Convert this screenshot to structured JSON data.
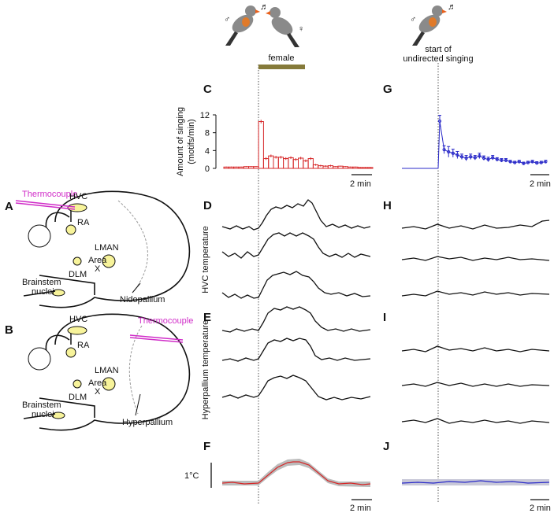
{
  "panels": [
    "A",
    "B",
    "C",
    "D",
    "E",
    "F",
    "G",
    "H",
    "I",
    "J"
  ],
  "male_symbol": "♂",
  "female_symbol": "♀",
  "note_symbol": "♬",
  "female_label": "female",
  "undirected_label": [
    "start of",
    "undirected singing"
  ],
  "y_axis_label": [
    "Amount of singing",
    "(motifs/min)"
  ],
  "scale_bar": "2 min",
  "hvc_temperature": "HVC temperature",
  "hyperpallium_temperature": "Hyperpallium temperature",
  "temperature_scale": "1°C",
  "brain_a": {
    "thermocouple": "Thermocouple",
    "hvc": "HVC",
    "ra": "RA",
    "lman": "LMAN",
    "area_x": [
      "Area",
      "X"
    ],
    "dlm": "DLM",
    "brainstem": [
      "Brainstem",
      "nuclei"
    ],
    "region": "Nidopallium"
  },
  "brain_b": {
    "thermocouple": "Thermocouple",
    "hvc": "HVC",
    "ra": "RA",
    "lman": "LMAN",
    "area_x": [
      "Area",
      "X"
    ],
    "dlm": "DLM",
    "brainstem": [
      "Brainstem",
      "nuclei"
    ],
    "region": "Hyperpallium"
  },
  "chart_data": [
    {
      "type": "step",
      "color": "#d62728",
      "ylim": [
        0,
        12
      ],
      "yticks": [
        0,
        4,
        8,
        12
      ],
      "values": [
        0.3,
        0.3,
        0.3,
        0.3,
        0.4,
        0.4,
        0.4,
        10.5,
        2.2,
        2.8,
        2.5,
        2.5,
        2.2,
        2.4,
        2.0,
        2.3,
        1.7,
        2.2,
        0.8,
        0.6,
        0.5,
        0.6,
        0.4,
        0.5,
        0.4,
        0.3,
        0.3,
        0.2,
        0.2,
        0.2
      ],
      "errors": [
        0.1,
        0.1,
        0.1,
        0.1,
        0.1,
        0.1,
        0.1,
        0.4,
        0.3,
        0.3,
        0.3,
        0.3,
        0.3,
        0.3,
        0.3,
        0.3,
        0.3,
        0.3,
        0.2,
        0.2,
        0.2,
        0.2,
        0.1,
        0.1,
        0.1,
        0.1,
        0.1,
        0.1,
        0.1,
        0.1
      ]
    },
    {
      "type": "line",
      "color": "#2929c8",
      "ylim": [
        0,
        12
      ],
      "values": [
        10.6,
        4.2,
        3.7,
        3.4,
        3.0,
        2.6,
        2.3,
        2.6,
        2.4,
        2.8,
        2.3,
        2.0,
        2.4,
        2.0,
        1.8,
        1.8,
        1.5,
        1.3,
        1.5,
        1.1,
        1.3,
        1.5,
        1.2,
        1.3,
        1.5
      ],
      "errors": [
        1.3,
        0.9,
        1.2,
        0.9,
        0.8,
        0.6,
        0.6,
        0.6,
        0.5,
        0.6,
        0.5,
        0.5,
        0.5,
        0.4,
        0.4,
        0.4,
        0.3,
        0.3,
        0.3,
        0.3,
        0.3,
        0.3,
        0.3,
        0.3,
        0.3
      ]
    }
  ]
}
